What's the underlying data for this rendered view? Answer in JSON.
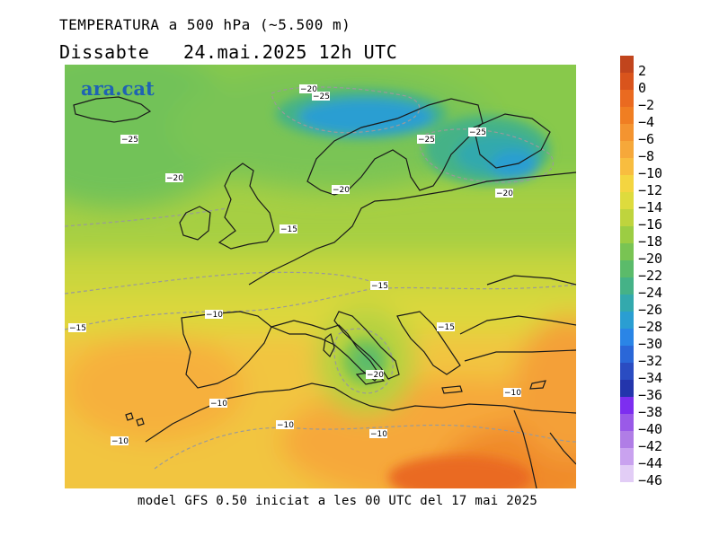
{
  "header": {
    "title_line1": "TEMPERATURA a 500 hPa (~5.500 m)",
    "title_line2": "Dissabte   24.mai.2025 12h UTC"
  },
  "footer": {
    "model_note": "model GFS 0.50 iniciat a les 00 UTC del 17 mai 2025"
  },
  "logo": {
    "text": "ara.cat"
  },
  "legend": {
    "items": [
      {
        "label": "2",
        "color": "#c1451d"
      },
      {
        "label": "0",
        "color": "#d9541c"
      },
      {
        "label": "−2",
        "color": "#ea6a20"
      },
      {
        "label": "−4",
        "color": "#f07e22"
      },
      {
        "label": "−6",
        "color": "#f49430"
      },
      {
        "label": "−8",
        "color": "#f6a83a"
      },
      {
        "label": "−10",
        "color": "#f8bd3f"
      },
      {
        "label": "−12",
        "color": "#f4d540"
      },
      {
        "label": "−14",
        "color": "#dedb3d"
      },
      {
        "label": "−16",
        "color": "#bfd43d"
      },
      {
        "label": "−18",
        "color": "#9ccd43"
      },
      {
        "label": "−20",
        "color": "#79c453"
      },
      {
        "label": "−22",
        "color": "#5bbb6a"
      },
      {
        "label": "−24",
        "color": "#45b287"
      },
      {
        "label": "−26",
        "color": "#33a9ad"
      },
      {
        "label": "−28",
        "color": "#2a9ed2"
      },
      {
        "label": "−30",
        "color": "#2a85e6"
      },
      {
        "label": "−32",
        "color": "#2a67d8"
      },
      {
        "label": "−34",
        "color": "#2a4cc2"
      },
      {
        "label": "−36",
        "color": "#2335ac"
      },
      {
        "label": "−38",
        "color": "#7d2ef0"
      },
      {
        "label": "−40",
        "color": "#9a5ae8"
      },
      {
        "label": "−42",
        "color": "#b07de6"
      },
      {
        "label": "−44",
        "color": "#c9a2ef"
      },
      {
        "label": "−46",
        "color": "#e2cdf6"
      }
    ]
  },
  "contour_labels": [
    {
      "text": "−20"
    },
    {
      "text": "−25"
    },
    {
      "text": "−25"
    },
    {
      "text": "−20"
    },
    {
      "text": "−25"
    },
    {
      "text": "−25"
    },
    {
      "text": "−20"
    },
    {
      "text": "−20"
    },
    {
      "text": "−15"
    },
    {
      "text": "−15"
    },
    {
      "text": "−10"
    },
    {
      "text": "−15"
    },
    {
      "text": "−15"
    },
    {
      "text": "−20"
    },
    {
      "text": "−10"
    },
    {
      "text": "−10"
    },
    {
      "text": "−10"
    },
    {
      "text": "−10"
    },
    {
      "text": "−10"
    }
  ]
}
